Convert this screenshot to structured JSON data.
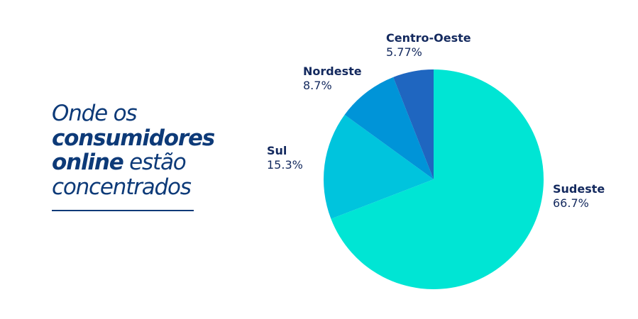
{
  "heading": {
    "line1": "Onde os",
    "line2_bold": "consumidores",
    "line3_bold": "online",
    "line3_rest": " estão",
    "line4": "concentrados"
  },
  "chart_data": {
    "type": "pie",
    "start": "top",
    "direction": "clockwise",
    "categories": [
      "Sudeste",
      "Sul",
      "Nordeste",
      "Centro-Oeste"
    ],
    "values": [
      66.7,
      15.3,
      8.7,
      5.77
    ],
    "value_labels": [
      "66.7%",
      "15.3%",
      "8.7%",
      "5.77%"
    ],
    "colors": [
      "#00e5d4",
      "#00c4dd",
      "#0094d8",
      "#1f66c0"
    ]
  }
}
